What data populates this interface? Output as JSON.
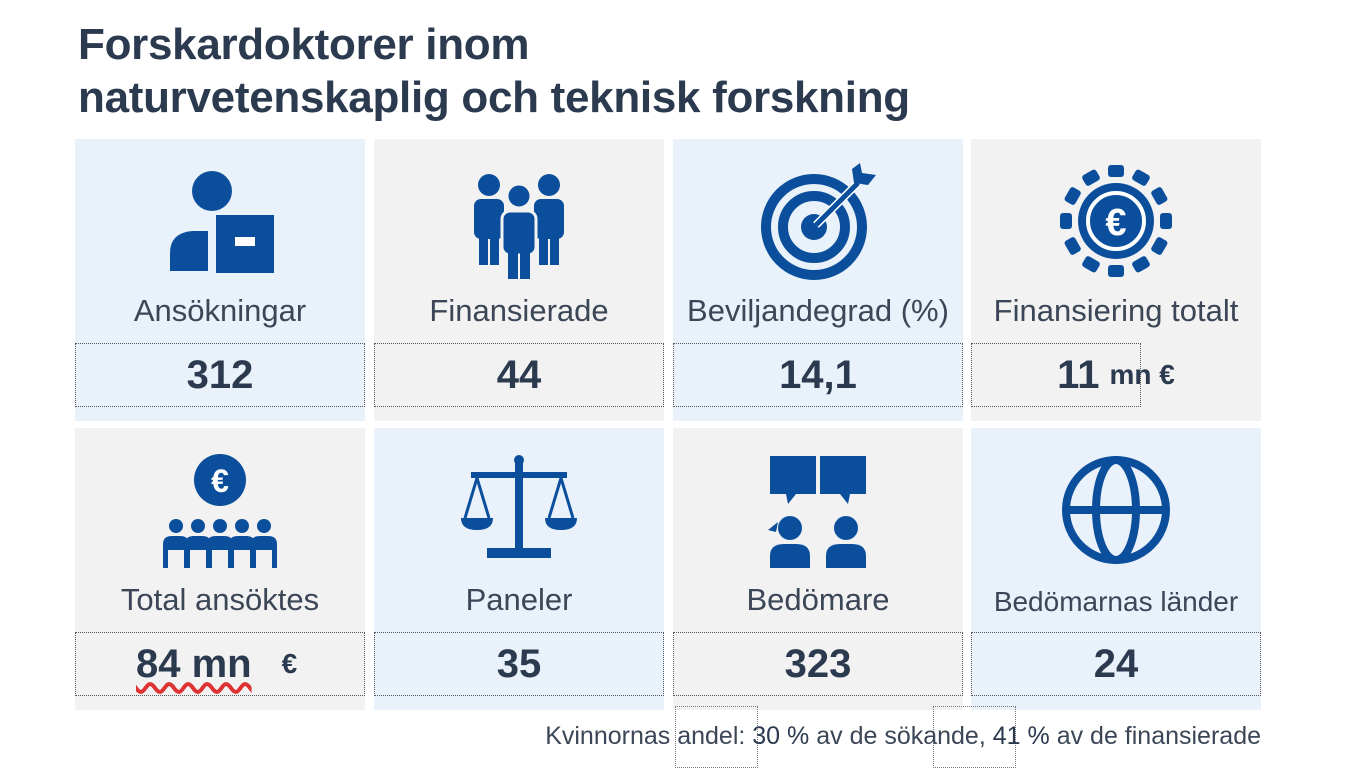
{
  "title": {
    "line1": "Forskardoktorer inom",
    "line2": "naturvetenskaplig och teknisk forskning"
  },
  "cards": [
    {
      "label": "Ansökningar",
      "value": "312",
      "unit": "",
      "icon": "person-with-document-icon"
    },
    {
      "label": "Finansierade",
      "value": "44",
      "unit": "",
      "icon": "group-of-people-icon"
    },
    {
      "label": "Beviljandegrad (%)",
      "value": "14,1",
      "unit": "",
      "icon": "target-with-arrow-icon"
    },
    {
      "label": "Finansiering totalt",
      "value": "11",
      "unit": "mn €",
      "icon": "euro-coin-icon"
    },
    {
      "label": "Total ansöktes",
      "value": "84 mn",
      "unit": "€",
      "icon": "euro-with-people-icon"
    },
    {
      "label": "Paneler",
      "value": "35",
      "unit": "",
      "icon": "scales-icon"
    },
    {
      "label": "Bedömare",
      "value": "323",
      "unit": "",
      "icon": "people-discussing-icon"
    },
    {
      "label": "Bedömarnas länder",
      "value": "24",
      "unit": "",
      "icon": "globe-icon"
    }
  ],
  "footer": {
    "prefix": "Kvinnornas andel:",
    "pct1": "30 %",
    "mid": "av de sökande,",
    "pct2": "41 %",
    "suffix": "av de finansierade"
  },
  "colors": {
    "icon": "#0b4f9c",
    "blue_card": "#e9f1fb",
    "gray_card": "#f2f2f2",
    "text": "#2b3a4e"
  }
}
